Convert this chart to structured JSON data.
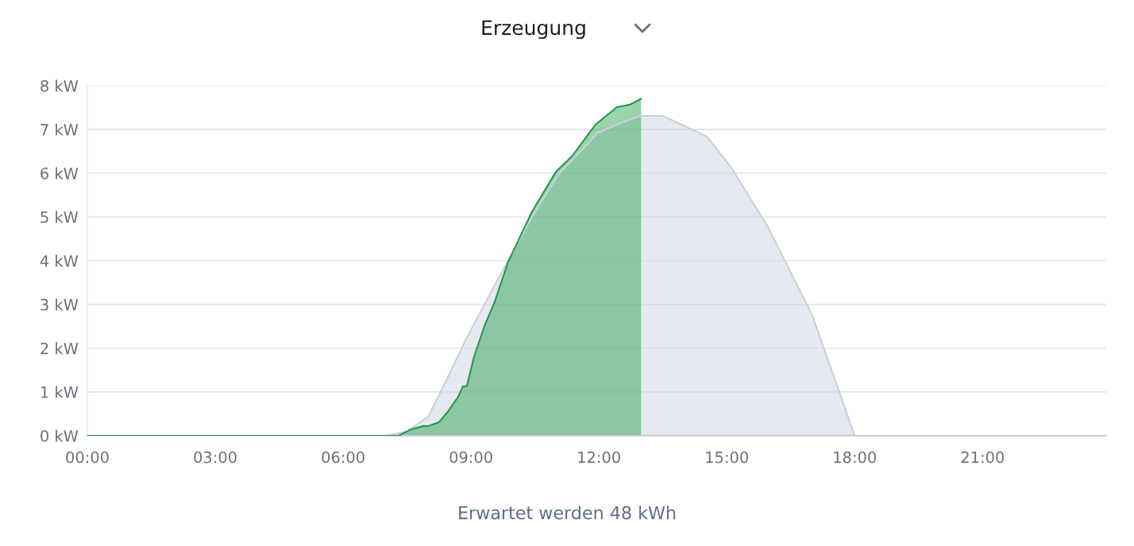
{
  "chart_data": {
    "type": "area",
    "title": "Erzeugung",
    "annotations": [
      "Erwartet werden 48 kWh"
    ],
    "xlim": [
      0,
      23.9
    ],
    "xticks": [
      {
        "value": 0,
        "label": "00:00"
      },
      {
        "value": 3,
        "label": "03:00"
      },
      {
        "value": 6,
        "label": "06:00"
      },
      {
        "value": 9,
        "label": "09:00"
      },
      {
        "value": 12,
        "label": "12:00"
      },
      {
        "value": 15,
        "label": "15:00"
      },
      {
        "value": 18,
        "label": "18:00"
      },
      {
        "value": 21,
        "label": "21:00"
      }
    ],
    "ylim": [
      0,
      8
    ],
    "yticks": [
      {
        "value": 0,
        "label": "0 kW"
      },
      {
        "value": 1,
        "label": "1 kW"
      },
      {
        "value": 2,
        "label": "2 kW"
      },
      {
        "value": 3,
        "label": "3 kW"
      },
      {
        "value": 4,
        "label": "4 kW"
      },
      {
        "value": 5,
        "label": "5 kW"
      },
      {
        "value": 6,
        "label": "6 kW"
      },
      {
        "value": 7,
        "label": "7 kW"
      },
      {
        "value": 8,
        "label": "8 kW"
      }
    ],
    "grid": "y",
    "series": [
      {
        "color": "#c8d0de",
        "x": [
          0,
          7.02,
          7.5,
          8.0,
          8.44,
          8.88,
          9.37,
          9.87,
          10.43,
          11.05,
          11.98,
          12.6,
          12.99,
          13.5,
          14.53,
          15.09,
          15.97,
          17.0,
          17.46,
          18.0,
          23.9
        ],
        "values": [
          0,
          0,
          0.1,
          0.44,
          1.3,
          2.2,
          3.1,
          4.0,
          5.0,
          5.97,
          6.93,
          7.18,
          7.31,
          7.31,
          6.84,
          6.15,
          4.76,
          2.76,
          1.49,
          0,
          0
        ]
      },
      {
        "color": "#1f9d48",
        "x": [
          0,
          7.3,
          7.58,
          7.88,
          8.0,
          8.25,
          8.44,
          8.7,
          8.81,
          8.9,
          9.07,
          9.32,
          9.56,
          9.87,
          10.43,
          10.99,
          11.37,
          11.92,
          12.42,
          12.73,
          12.99
        ],
        "values": [
          0,
          0,
          0.14,
          0.22,
          0.22,
          0.31,
          0.53,
          0.89,
          1.13,
          1.13,
          1.8,
          2.52,
          3.07,
          3.97,
          5.12,
          6.03,
          6.39,
          7.11,
          7.51,
          7.57,
          7.7
        ]
      }
    ]
  }
}
